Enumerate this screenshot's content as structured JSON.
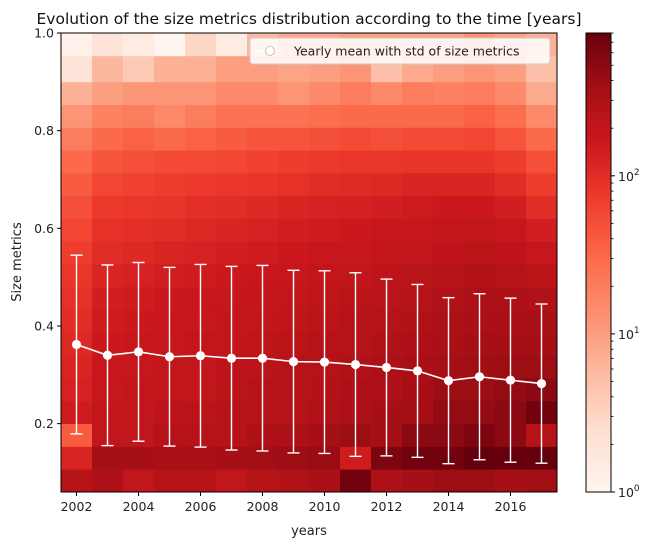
{
  "chart_data": {
    "type": "heatmap",
    "title": "Evolution of the size metrics distribution according to the time [years]",
    "xlabel": "years",
    "ylabel": "Size metrics",
    "x_range": [
      2001.5,
      2017.5
    ],
    "y_range": [
      0.06,
      1.0
    ],
    "x_ticks": [
      "2002",
      "2004",
      "2006",
      "2008",
      "2010",
      "2012",
      "2014",
      "2016"
    ],
    "y_ticks": [
      "0.2",
      "0.4",
      "0.6",
      "0.8",
      "1.0"
    ],
    "colormap": "Reds",
    "color_scale": "log",
    "color_range": [
      1,
      800
    ],
    "colorbar_ticks": [
      {
        "value": 1,
        "base": "10",
        "exp": "0"
      },
      {
        "value": 10,
        "base": "10",
        "exp": "1"
      },
      {
        "value": 100,
        "base": "10",
        "exp": "2"
      }
    ],
    "years": [
      2002,
      2003,
      2004,
      2005,
      2006,
      2007,
      2008,
      2009,
      2010,
      2011,
      2012,
      2013,
      2014,
      2015,
      2016,
      2017
    ],
    "y_bins": [
      0.06,
      0.1067,
      0.1533,
      0.2,
      0.2467,
      0.2933,
      0.34,
      0.3867,
      0.4333,
      0.48,
      0.5267,
      0.5733,
      0.62,
      0.6667,
      0.7133,
      0.76,
      0.8067,
      0.8533,
      0.9,
      0.9533,
      1.0
    ],
    "counts": [
      [
        250,
        300,
        200,
        250,
        250,
        200,
        250,
        280,
        320,
        700,
        300,
        350,
        400,
        400,
        350,
        380
      ],
      [
        120,
        350,
        350,
        320,
        330,
        350,
        380,
        400,
        420,
        150,
        600,
        700,
        700,
        800,
        900,
        800
      ],
      [
        40,
        200,
        200,
        250,
        250,
        250,
        300,
        300,
        350,
        400,
        350,
        500,
        500,
        600,
        500,
        250
      ],
      [
        150,
        200,
        200,
        220,
        230,
        250,
        260,
        250,
        280,
        300,
        350,
        350,
        450,
        450,
        500,
        700
      ],
      [
        130,
        180,
        200,
        200,
        200,
        230,
        250,
        250,
        270,
        300,
        300,
        350,
        400,
        400,
        450,
        500
      ],
      [
        120,
        170,
        180,
        200,
        200,
        220,
        230,
        250,
        260,
        280,
        300,
        330,
        350,
        380,
        400,
        400
      ],
      [
        110,
        160,
        170,
        180,
        190,
        200,
        210,
        230,
        250,
        260,
        280,
        300,
        320,
        350,
        350,
        350
      ],
      [
        100,
        150,
        160,
        170,
        180,
        190,
        200,
        210,
        230,
        250,
        260,
        280,
        300,
        320,
        330,
        330
      ],
      [
        90,
        140,
        150,
        160,
        170,
        180,
        190,
        200,
        210,
        230,
        240,
        260,
        280,
        300,
        300,
        280
      ],
      [
        80,
        120,
        130,
        140,
        150,
        160,
        170,
        180,
        190,
        200,
        220,
        240,
        250,
        270,
        260,
        230
      ],
      [
        70,
        100,
        110,
        120,
        130,
        140,
        150,
        160,
        170,
        180,
        190,
        200,
        220,
        230,
        220,
        180
      ],
      [
        60,
        90,
        95,
        100,
        110,
        120,
        130,
        140,
        150,
        160,
        170,
        180,
        190,
        200,
        180,
        140
      ],
      [
        50,
        75,
        80,
        85,
        95,
        100,
        110,
        120,
        130,
        135,
        140,
        150,
        160,
        160,
        140,
        100
      ],
      [
        40,
        60,
        65,
        70,
        75,
        80,
        85,
        90,
        100,
        105,
        110,
        120,
        120,
        120,
        100,
        70
      ],
      [
        30,
        45,
        50,
        55,
        55,
        60,
        65,
        70,
        75,
        80,
        80,
        85,
        85,
        85,
        70,
        50
      ],
      [
        20,
        30,
        35,
        30,
        35,
        40,
        45,
        45,
        50,
        55,
        50,
        55,
        55,
        60,
        45,
        30
      ],
      [
        12,
        18,
        20,
        15,
        20,
        25,
        25,
        25,
        28,
        30,
        30,
        30,
        30,
        35,
        28,
        15
      ],
      [
        7,
        10,
        12,
        12,
        12,
        15,
        15,
        12,
        15,
        20,
        15,
        20,
        18,
        20,
        15,
        8
      ],
      [
        2,
        6,
        4,
        7,
        7,
        10,
        10,
        9,
        10,
        12,
        5,
        8,
        10,
        12,
        10,
        5
      ],
      [
        1.2,
        2,
        1.5,
        1,
        3,
        1.5,
        6,
        8,
        8,
        10,
        10,
        9,
        9,
        12,
        9,
        7
      ]
    ],
    "series": [
      {
        "name": "Yearly mean with std of size metrics",
        "x": [
          2002,
          2003,
          2004,
          2005,
          2006,
          2007,
          2008,
          2009,
          2010,
          2011,
          2012,
          2013,
          2014,
          2015,
          2016,
          2017
        ],
        "mean": [
          0.362,
          0.34,
          0.347,
          0.337,
          0.339,
          0.334,
          0.334,
          0.327,
          0.326,
          0.321,
          0.315,
          0.308,
          0.288,
          0.296,
          0.289,
          0.282
        ],
        "std": [
          0.183,
          0.185,
          0.183,
          0.183,
          0.187,
          0.188,
          0.19,
          0.187,
          0.187,
          0.188,
          0.181,
          0.177,
          0.17,
          0.17,
          0.168,
          0.163
        ],
        "color": "#ffffff"
      }
    ],
    "legend_position": "top-right",
    "grid": false
  }
}
